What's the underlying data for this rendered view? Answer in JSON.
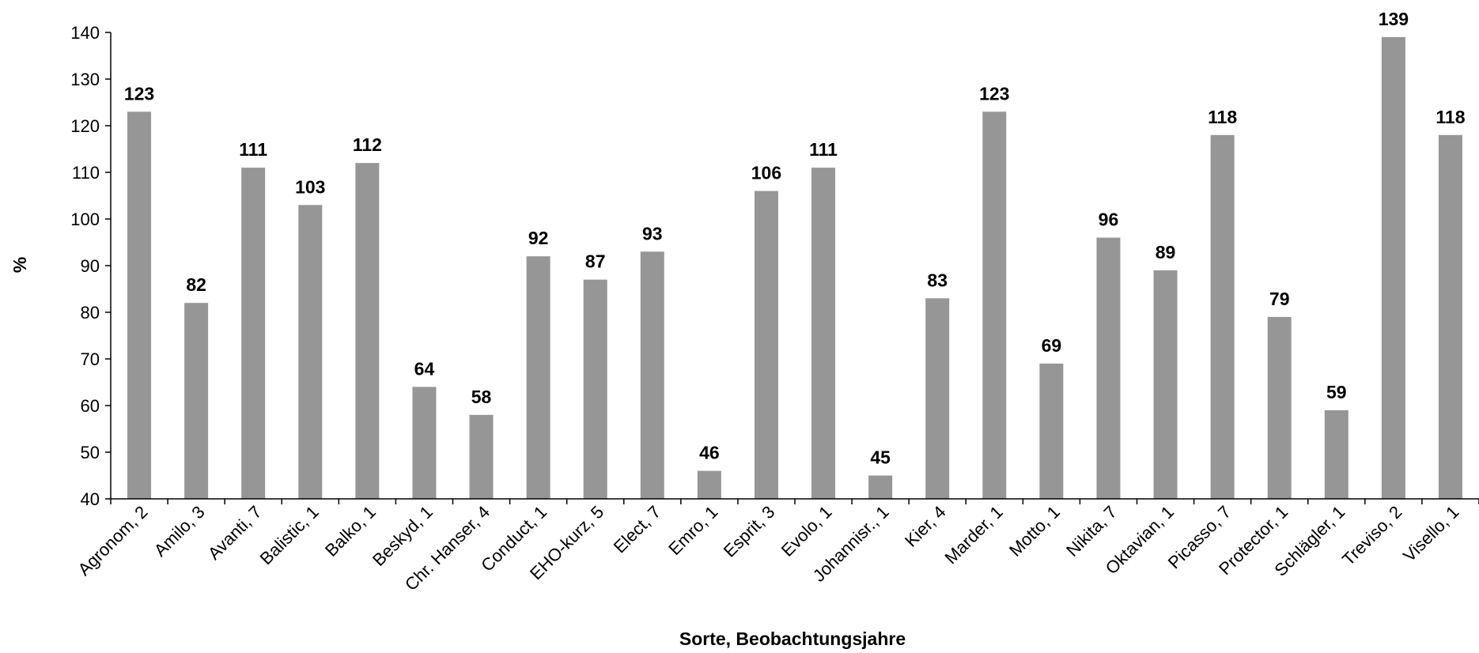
{
  "chart_data": {
    "type": "bar",
    "title": "",
    "xlabel": "Sorte, Beobachtungsjahre",
    "ylabel": "%",
    "ylim": [
      40,
      140
    ],
    "yticks": [
      40,
      50,
      60,
      70,
      80,
      90,
      100,
      110,
      120,
      130,
      140
    ],
    "grid": false,
    "bar_color": "#969696",
    "categories": [
      "Agronom, 2",
      "Amilo, 3",
      "Avanti, 7",
      "Balistic, 1",
      "Balko, 1",
      "Beskyd, 1",
      "Chr. Hanser, 4",
      "Conduct, 1",
      "EHO-kurz, 5",
      "Elect, 7",
      "Emro, 1",
      "Esprit, 3",
      "Evolo, 1",
      "Johannisr., 1",
      "Kier, 4",
      "Marder, 1",
      "Motto, 1",
      "Nikita, 7",
      "Oktavian, 1",
      "Picasso, 7",
      "Protector, 1",
      "Schlägler, 1",
      "Treviso, 2",
      "Visello, 1"
    ],
    "values": [
      123,
      82,
      111,
      103,
      112,
      64,
      58,
      92,
      87,
      93,
      46,
      106,
      111,
      45,
      83,
      123,
      69,
      96,
      89,
      118,
      79,
      59,
      139,
      118
    ],
    "data_labels": [
      "123",
      "82",
      "111",
      "103",
      "112",
      "64",
      "58",
      "92",
      "87",
      "93",
      "46",
      "106",
      "111",
      "45",
      "83",
      "123",
      "69",
      "96",
      "89",
      "118",
      "79",
      "59",
      "139",
      "118"
    ]
  }
}
